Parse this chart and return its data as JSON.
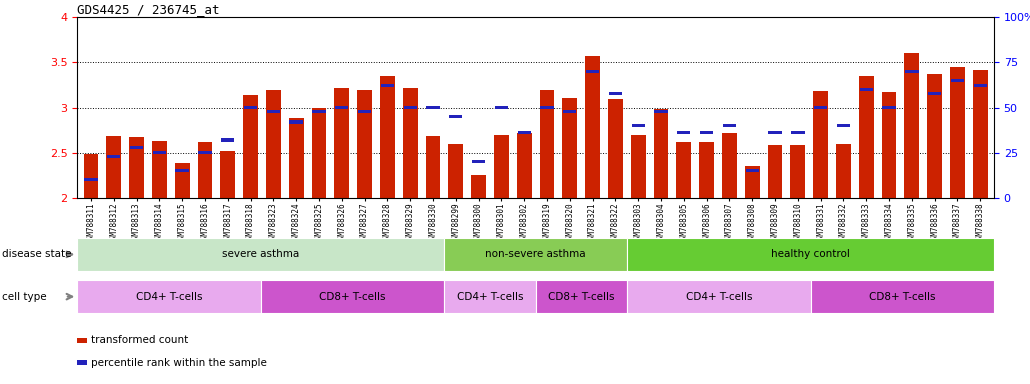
{
  "title": "GDS4425 / 236745_at",
  "samples": [
    "GSM788311",
    "GSM788312",
    "GSM788313",
    "GSM788314",
    "GSM788315",
    "GSM788316",
    "GSM788317",
    "GSM788318",
    "GSM788323",
    "GSM788324",
    "GSM788325",
    "GSM788326",
    "GSM788327",
    "GSM788328",
    "GSM788329",
    "GSM788330",
    "GSM788299",
    "GSM788300",
    "GSM788301",
    "GSM788302",
    "GSM788319",
    "GSM788320",
    "GSM788321",
    "GSM788322",
    "GSM788303",
    "GSM788304",
    "GSM788305",
    "GSM788306",
    "GSM788307",
    "GSM788308",
    "GSM788309",
    "GSM788310",
    "GSM788331",
    "GSM788332",
    "GSM788333",
    "GSM788334",
    "GSM788335",
    "GSM788336",
    "GSM788337",
    "GSM788338"
  ],
  "bar_values": [
    2.48,
    2.68,
    2.67,
    2.63,
    2.38,
    2.62,
    2.52,
    3.14,
    3.19,
    2.88,
    3.0,
    3.22,
    3.19,
    3.35,
    3.22,
    2.68,
    2.6,
    2.25,
    2.7,
    2.72,
    3.19,
    3.1,
    3.57,
    3.09,
    2.7,
    2.98,
    2.62,
    2.62,
    2.72,
    2.35,
    2.58,
    2.58,
    3.18,
    2.6,
    3.35,
    3.17,
    3.6,
    3.37,
    3.45,
    3.42
  ],
  "percentile_values": [
    10,
    23,
    28,
    25,
    15,
    25,
    32,
    50,
    48,
    42,
    48,
    50,
    48,
    62,
    50,
    50,
    45,
    20,
    50,
    36,
    50,
    48,
    70,
    58,
    40,
    48,
    36,
    36,
    40,
    15,
    36,
    36,
    50,
    40,
    60,
    50,
    70,
    58,
    65,
    62
  ],
  "ymin": 2.0,
  "ymax": 4.0,
  "yticks_left": [
    2.0,
    2.5,
    3.0,
    3.5,
    4.0
  ],
  "ytick_labels_left": [
    "2",
    "2.5",
    "3",
    "3.5",
    "4"
  ],
  "ytick_labels_right": [
    "0",
    "25",
    "50",
    "75",
    "100%"
  ],
  "bar_color": "#cc2200",
  "percentile_color": "#2222bb",
  "disease_state_groups": [
    {
      "label": "severe asthma",
      "start": 0,
      "end": 15,
      "color": "#c8e6c8"
    },
    {
      "label": "non-severe asthma",
      "start": 16,
      "end": 23,
      "color": "#88cc55"
    },
    {
      "label": "healthy control",
      "start": 24,
      "end": 39,
      "color": "#66cc33"
    }
  ],
  "cell_type_groups": [
    {
      "label": "CD4+ T-cells",
      "start": 0,
      "end": 7,
      "color": "#e8aaee"
    },
    {
      "label": "CD8+ T-cells",
      "start": 8,
      "end": 15,
      "color": "#cc55cc"
    },
    {
      "label": "CD4+ T-cells",
      "start": 16,
      "end": 19,
      "color": "#e8aaee"
    },
    {
      "label": "CD8+ T-cells",
      "start": 20,
      "end": 23,
      "color": "#cc55cc"
    },
    {
      "label": "CD4+ T-cells",
      "start": 24,
      "end": 31,
      "color": "#e8aaee"
    },
    {
      "label": "CD8+ T-cells",
      "start": 32,
      "end": 39,
      "color": "#cc55cc"
    }
  ],
  "legend_items": [
    {
      "label": "transformed count",
      "color": "#cc2200"
    },
    {
      "label": "percentile rank within the sample",
      "color": "#2222bb"
    }
  ]
}
